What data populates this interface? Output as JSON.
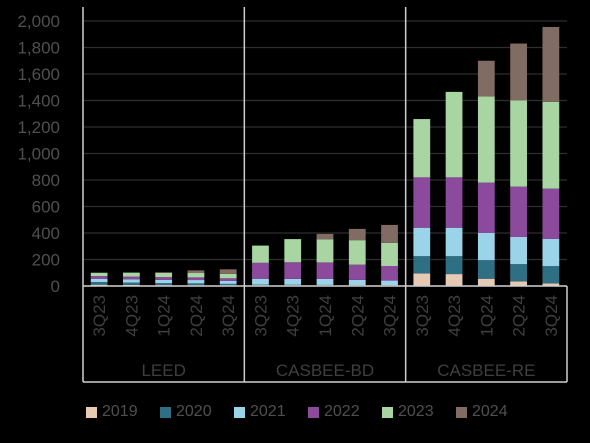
{
  "chart_data": {
    "type": "bar",
    "stacked": true,
    "groups": [
      {
        "label": "LEED",
        "categories": [
          "3Q23",
          "4Q23",
          "1Q24",
          "2Q24",
          "3Q24"
        ]
      },
      {
        "label": "CASBEE-BD",
        "categories": [
          "3Q23",
          "4Q23",
          "1Q24",
          "2Q24",
          "3Q24"
        ]
      },
      {
        "label": "CASBEE-RE",
        "categories": [
          "3Q23",
          "4Q23",
          "1Q24",
          "2Q24",
          "3Q24"
        ]
      }
    ],
    "series": [
      {
        "name": "2019",
        "color": "#e7c9b4",
        "values": [
          10,
          8,
          6,
          5,
          4,
          4,
          4,
          4,
          3,
          3,
          95,
          90,
          55,
          35,
          20
        ]
      },
      {
        "name": "2020",
        "color": "#2e6f84",
        "values": [
          20,
          18,
          16,
          15,
          12,
          6,
          5,
          4,
          3,
          3,
          130,
          135,
          140,
          130,
          130
        ]
      },
      {
        "name": "2021",
        "color": "#9bd3e8",
        "values": [
          25,
          25,
          25,
          25,
          22,
          45,
          45,
          45,
          40,
          35,
          215,
          215,
          205,
          205,
          205
        ]
      },
      {
        "name": "2022",
        "color": "#8b4a9c",
        "values": [
          20,
          20,
          20,
          20,
          20,
          120,
          125,
          125,
          115,
          110,
          380,
          380,
          380,
          380,
          380
        ]
      },
      {
        "name": "2023",
        "color": "#a8d5a2",
        "values": [
          25,
          30,
          32,
          33,
          33,
          130,
          175,
          175,
          185,
          175,
          440,
          645,
          650,
          650,
          655
        ]
      },
      {
        "name": "2024",
        "color": "#806c62",
        "values": [
          0,
          0,
          5,
          20,
          35,
          0,
          0,
          40,
          85,
          135,
          0,
          0,
          270,
          430,
          565
        ]
      }
    ],
    "ylim": [
      0,
      2000
    ],
    "yticks": [
      "0",
      "200",
      "400",
      "600",
      "800",
      "1,000",
      "1,200",
      "1,400",
      "1,600",
      "1,800",
      "2,000"
    ],
    "legend_position": "bottom",
    "grid": true
  }
}
